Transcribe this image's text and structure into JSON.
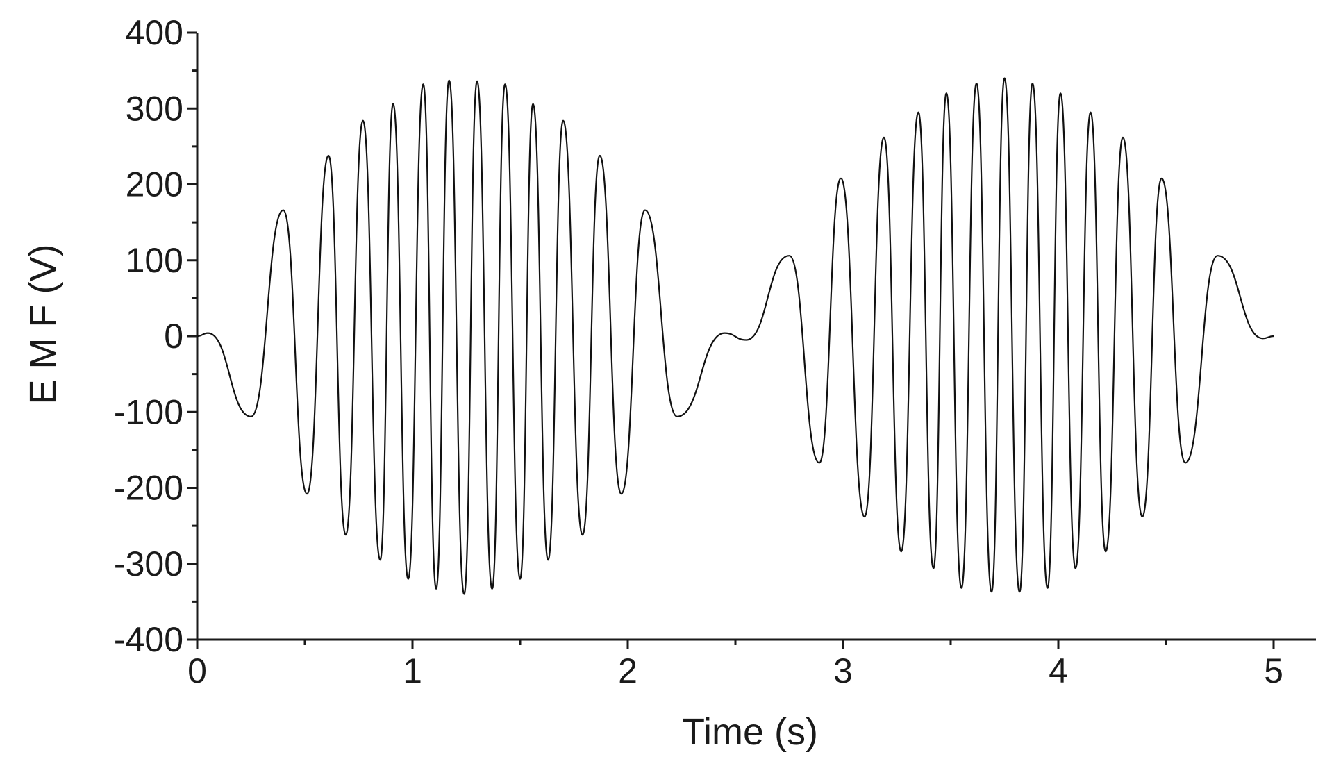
{
  "chart_data": {
    "type": "line",
    "title": "",
    "xlabel": "Time (s)",
    "ylabel": "E M F (V)",
    "xlim": [
      0,
      5.2
    ],
    "ylim": [
      -400,
      400
    ],
    "x_ticks": [
      0,
      1,
      2,
      3,
      4,
      5
    ],
    "y_ticks": [
      -400,
      -300,
      -200,
      -100,
      0,
      100,
      200,
      300,
      400
    ],
    "x_tick_labels": [
      "0",
      "1",
      "2",
      "3",
      "4",
      "5"
    ],
    "y_tick_labels": [
      "-400",
      "-300",
      "-200",
      "-100",
      "0",
      "100",
      "200",
      "300",
      "400"
    ],
    "grid": false,
    "legend": "none",
    "line_color": "#111111",
    "series": [
      {
        "x": [
          0,
          0.05,
          0.25,
          0.4,
          0.51,
          0.61,
          0.69,
          0.77,
          0.85,
          0.91,
          0.98,
          1.05,
          1.11,
          1.17,
          1.24,
          1.3,
          1.37,
          1.43,
          1.5,
          1.56,
          1.63,
          1.7,
          1.79,
          1.87,
          1.97,
          2.08,
          2.23,
          2.45,
          2.55,
          2.75,
          2.89,
          2.99,
          3.1,
          3.19,
          3.27,
          3.35,
          3.42,
          3.48,
          3.55,
          3.62,
          3.69,
          3.75,
          3.82,
          3.88,
          3.95,
          4.01,
          4.08,
          4.15,
          4.22,
          4.3,
          4.39,
          4.48,
          4.59,
          4.74,
          4.95,
          5.0
        ],
        "y": [
          0,
          4,
          -106,
          166,
          -208,
          238,
          -262,
          284,
          -295,
          306,
          -320,
          332,
          -333,
          337,
          -340,
          336,
          -333,
          332,
          -320,
          306,
          -295,
          284,
          -262,
          238,
          -208,
          166,
          -106,
          4,
          -5,
          106,
          -167,
          208,
          -238,
          262,
          -284,
          295,
          -306,
          320,
          -332,
          333,
          -337,
          340,
          -337,
          333,
          -332,
          320,
          -306,
          295,
          -284,
          262,
          -238,
          208,
          -167,
          106,
          -3,
          0
        ]
      }
    ]
  }
}
